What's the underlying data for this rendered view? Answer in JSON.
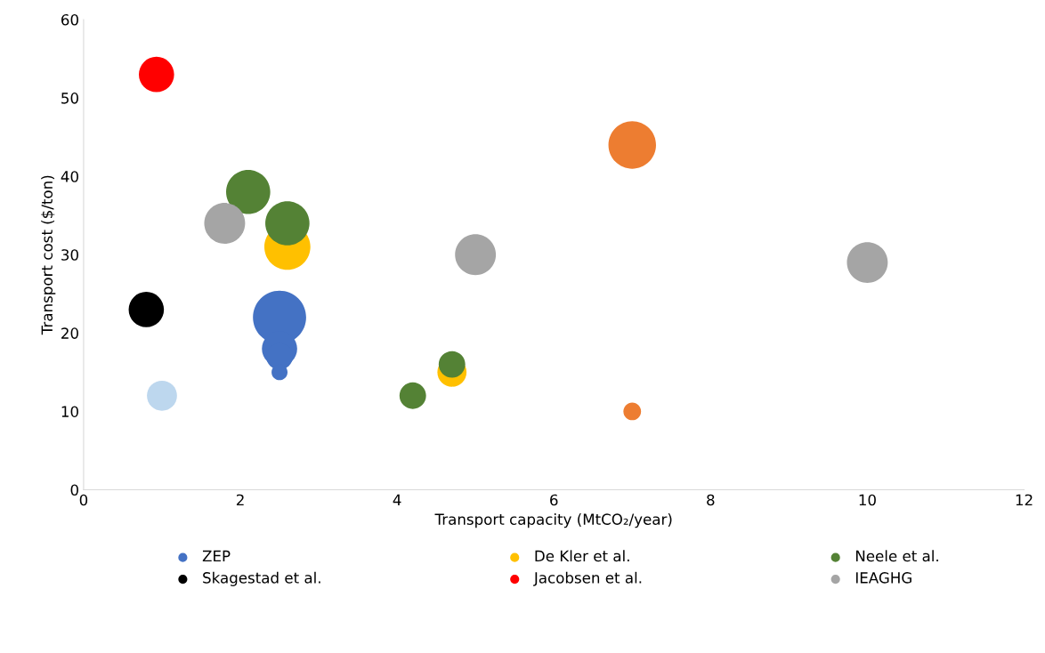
{
  "chart_data": {
    "type": "bubble",
    "xlabel": "Transport capacity (MtCO₂/year)",
    "ylabel": "Transport cost ($/ton)",
    "xlim": [
      0,
      12
    ],
    "xticks": [
      0,
      2,
      4,
      6,
      8,
      10,
      12
    ],
    "ylim": [
      0,
      60
    ],
    "yticks": [
      0,
      10,
      20,
      30,
      40,
      50,
      60
    ],
    "grid": false,
    "legend": "bottom",
    "series": [
      {
        "color": "#ed7d31",
        "x": [
          7,
          7
        ],
        "values": [
          44,
          10
        ],
        "sizes": [
          0.8,
          0.11
        ]
      },
      {
        "name": "ZEP",
        "color": "#4472c4",
        "x": [
          2.5,
          2.5,
          2.5,
          2.5
        ],
        "values": [
          22,
          18,
          17,
          15
        ],
        "sizes": [
          1,
          0.44,
          0.25,
          0.09
        ]
      },
      {
        "name": "Skagestad et al.",
        "color": "#000000",
        "x": [
          0.8
        ],
        "values": [
          23
        ],
        "sizes": [
          0.44
        ]
      },
      {
        "name": "De Kler et al.",
        "color": "#ffc000",
        "x": [
          2.6,
          4.7
        ],
        "values": [
          31,
          15
        ],
        "sizes": [
          0.75,
          0.3
        ]
      },
      {
        "name": "Jacobsen et al.",
        "color": "#ff0000",
        "x": [
          0.93
        ],
        "values": [
          53
        ],
        "sizes": [
          0.44
        ]
      },
      {
        "name": "Neele et al.",
        "color": "#548235",
        "x": [
          2.1,
          2.6,
          4.7,
          4.2
        ],
        "values": [
          38,
          34,
          16,
          12
        ],
        "sizes": [
          0.69,
          0.69,
          0.25,
          0.25
        ]
      },
      {
        "color": "#bdd7ee",
        "x": [
          1
        ],
        "values": [
          12
        ],
        "sizes": [
          0.32
        ]
      },
      {
        "name": "IEAGHG",
        "color": "#a5a5a5",
        "x": [
          1.8,
          5,
          10
        ],
        "values": [
          34,
          30,
          29
        ],
        "sizes": [
          0.59,
          0.59,
          0.59
        ]
      }
    ]
  }
}
